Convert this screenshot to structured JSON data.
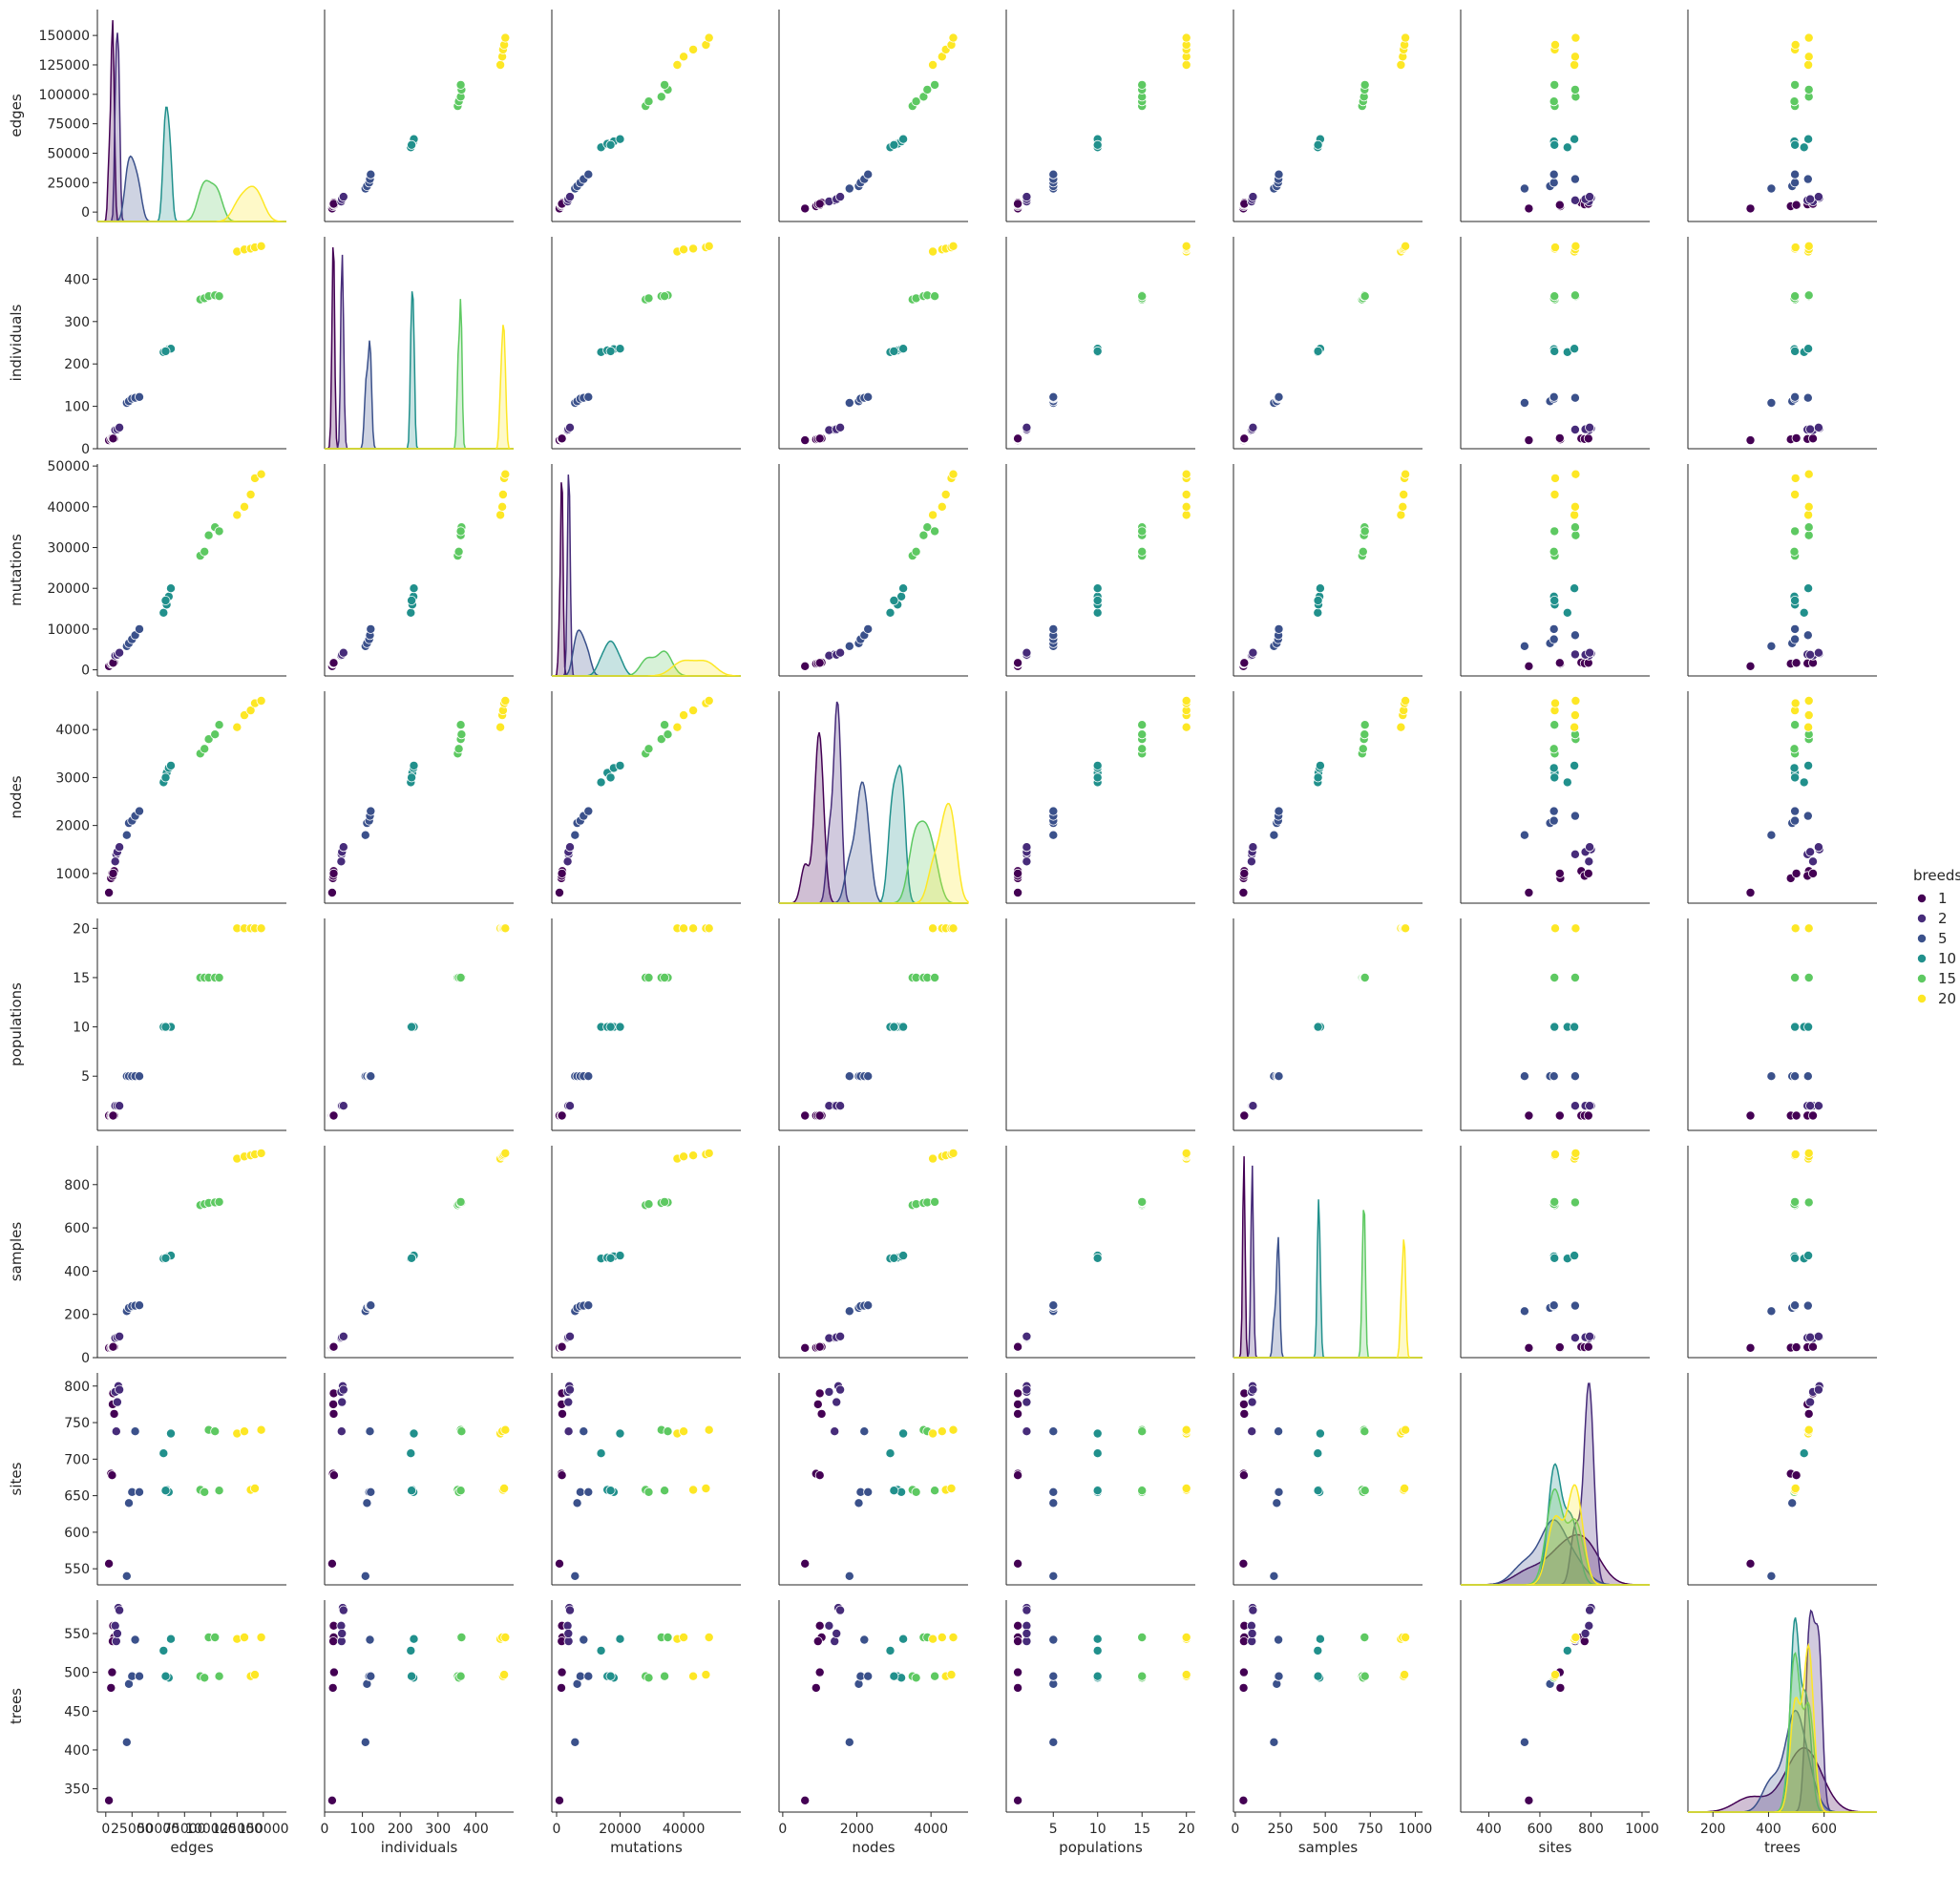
{
  "chart_data": {
    "type": "scatter",
    "kind": "pairplot",
    "variables": [
      "edges",
      "individuals",
      "mutations",
      "nodes",
      "populations",
      "samples",
      "sites",
      "trees"
    ],
    "hue_variable": "breeds",
    "palette": "viridis",
    "diagonal": "kde",
    "grid": false,
    "legend_position": "right",
    "legend": {
      "title": "breeds",
      "entries": [
        {
          "label": "1",
          "color": "#440154"
        },
        {
          "label": "2",
          "color": "#472c7a"
        },
        {
          "label": "5",
          "color": "#3b518b"
        },
        {
          "label": "10",
          "color": "#21908c"
        },
        {
          "label": "15",
          "color": "#5ec962"
        },
        {
          "label": "20",
          "color": "#fde725"
        }
      ]
    },
    "axes": {
      "edges": {
        "range": [
          -8000,
          172000
        ],
        "ticks": [
          "0",
          "25000",
          "50000",
          "75000",
          "100000",
          "125000",
          "150000"
        ],
        "tick_values": [
          0,
          25000,
          50000,
          75000,
          100000,
          125000,
          150000
        ]
      },
      "individuals": {
        "range": [
          0,
          500
        ],
        "ticks": [
          "0",
          "100",
          "200",
          "300",
          "400"
        ],
        "tick_values": [
          0,
          100,
          200,
          300,
          400
        ]
      },
      "mutations": {
        "range": [
          -1500,
          50500
        ],
        "ticks": [
          "0",
          "10000",
          "20000",
          "30000",
          "40000",
          "50000"
        ],
        "tick_values": [
          0,
          10000,
          20000,
          30000,
          40000,
          50000
        ],
        "x_ticks": [
          "0",
          "20000",
          "40000"
        ],
        "x_tick_values": [
          0,
          20000,
          40000
        ],
        "x_range": [
          -1500,
          58000
        ]
      },
      "nodes": {
        "range": [
          380,
          4800
        ],
        "ticks": [
          "1000",
          "2000",
          "3000",
          "4000"
        ],
        "tick_values": [
          1000,
          2000,
          3000,
          4000
        ],
        "x_ticks": [
          "0",
          "2000",
          "4000"
        ],
        "x_tick_values": [
          0,
          2000,
          4000
        ],
        "x_range": [
          -100,
          5000
        ]
      },
      "populations": {
        "range": [
          -0.5,
          21
        ],
        "ticks": [
          "5",
          "10",
          "15",
          "20"
        ],
        "tick_values": [
          5,
          10,
          15,
          20
        ],
        "x_range": [
          -0.3,
          21
        ]
      },
      "samples": {
        "range": [
          0,
          980
        ],
        "ticks": [
          "0",
          "200",
          "400",
          "600",
          "800"
        ],
        "tick_values": [
          0,
          200,
          400,
          600,
          800
        ],
        "x_ticks": [
          "0",
          "250",
          "500",
          "750",
          "1000"
        ],
        "x_tick_values": [
          0,
          250,
          500,
          750,
          1000
        ],
        "x_range": [
          -10,
          1040
        ]
      },
      "sites": {
        "range": [
          528,
          818
        ],
        "ticks": [
          "550",
          "600",
          "650",
          "700",
          "750",
          "800"
        ],
        "tick_values": [
          550,
          600,
          650,
          700,
          750,
          800
        ],
        "x_ticks": [
          "400",
          "600",
          "800",
          "1000"
        ],
        "x_tick_values": [
          400,
          600,
          800,
          1000
        ],
        "x_range": [
          290,
          1030
        ]
      },
      "trees": {
        "range": [
          320,
          593
        ],
        "ticks": [
          "350",
          "400",
          "450",
          "500",
          "550"
        ],
        "tick_values": [
          350,
          400,
          450,
          500,
          550
        ],
        "x_ticks": [
          "200",
          "400",
          "600"
        ],
        "x_tick_values": [
          200,
          400,
          600
        ],
        "x_range": [
          110,
          790
        ]
      }
    },
    "series": [
      {
        "breeds": 1,
        "points": [
          [
            3000,
            20,
            900,
            600,
            1,
            45,
            557,
            335
          ],
          [
            5000,
            22,
            1500,
            900,
            1,
            46,
            680,
            480
          ],
          [
            6000,
            25,
            1700,
            1000,
            1,
            48,
            678,
            500
          ],
          [
            8000,
            24,
            1800,
            1050,
            1,
            50,
            762,
            545
          ],
          [
            6500,
            23,
            1600,
            950,
            1,
            48,
            775,
            540
          ],
          [
            7000,
            24,
            1700,
            1000,
            1,
            50,
            790,
            560
          ]
        ]
      },
      {
        "breeds": 2,
        "points": [
          [
            10000,
            45,
            3800,
            1400,
            2,
            92,
            738,
            540
          ],
          [
            12000,
            48,
            4000,
            1500,
            2,
            96,
            800,
            583
          ],
          [
            9000,
            44,
            3500,
            1250,
            2,
            90,
            792,
            560
          ],
          [
            11000,
            46,
            3700,
            1450,
            2,
            94,
            778,
            550
          ],
          [
            13000,
            50,
            4200,
            1550,
            2,
            98,
            795,
            580
          ]
        ]
      },
      {
        "breeds": 5,
        "points": [
          [
            20000,
            108,
            5800,
            1800,
            5,
            215,
            540,
            410
          ],
          [
            22000,
            112,
            6500,
            2050,
            5,
            230,
            640,
            485
          ],
          [
            25000,
            118,
            7500,
            2100,
            5,
            238,
            655,
            495
          ],
          [
            28000,
            120,
            8500,
            2200,
            5,
            240,
            738,
            542
          ],
          [
            32000,
            122,
            10000,
            2300,
            5,
            242,
            655,
            495
          ]
        ]
      },
      {
        "breeds": 10,
        "points": [
          [
            55000,
            228,
            14000,
            2900,
            10,
            458,
            708,
            528
          ],
          [
            58000,
            232,
            16000,
            3100,
            10,
            462,
            658,
            495
          ],
          [
            60000,
            235,
            18000,
            3200,
            10,
            468,
            655,
            493
          ],
          [
            62000,
            236,
            20000,
            3250,
            10,
            472,
            735,
            543
          ],
          [
            57000,
            230,
            17000,
            3000,
            10,
            460,
            657,
            495
          ]
        ]
      },
      {
        "breeds": 15,
        "points": [
          [
            90000,
            352,
            28000,
            3500,
            15,
            705,
            658,
            495
          ],
          [
            94000,
            355,
            29000,
            3600,
            15,
            710,
            655,
            493
          ],
          [
            98000,
            360,
            33000,
            3800,
            15,
            715,
            740,
            545
          ],
          [
            104000,
            362,
            35000,
            3900,
            15,
            718,
            738,
            545
          ],
          [
            108000,
            360,
            34000,
            4100,
            15,
            720,
            657,
            495
          ]
        ]
      },
      {
        "breeds": 20,
        "points": [
          [
            125000,
            465,
            38000,
            4050,
            20,
            920,
            735,
            543
          ],
          [
            132000,
            470,
            40000,
            4300,
            20,
            930,
            738,
            545
          ],
          [
            138000,
            472,
            43000,
            4400,
            20,
            935,
            658,
            495
          ],
          [
            142000,
            475,
            47000,
            4550,
            20,
            940,
            660,
            497
          ],
          [
            148000,
            478,
            48000,
            4600,
            20,
            945,
            740,
            545
          ]
        ]
      }
    ]
  }
}
